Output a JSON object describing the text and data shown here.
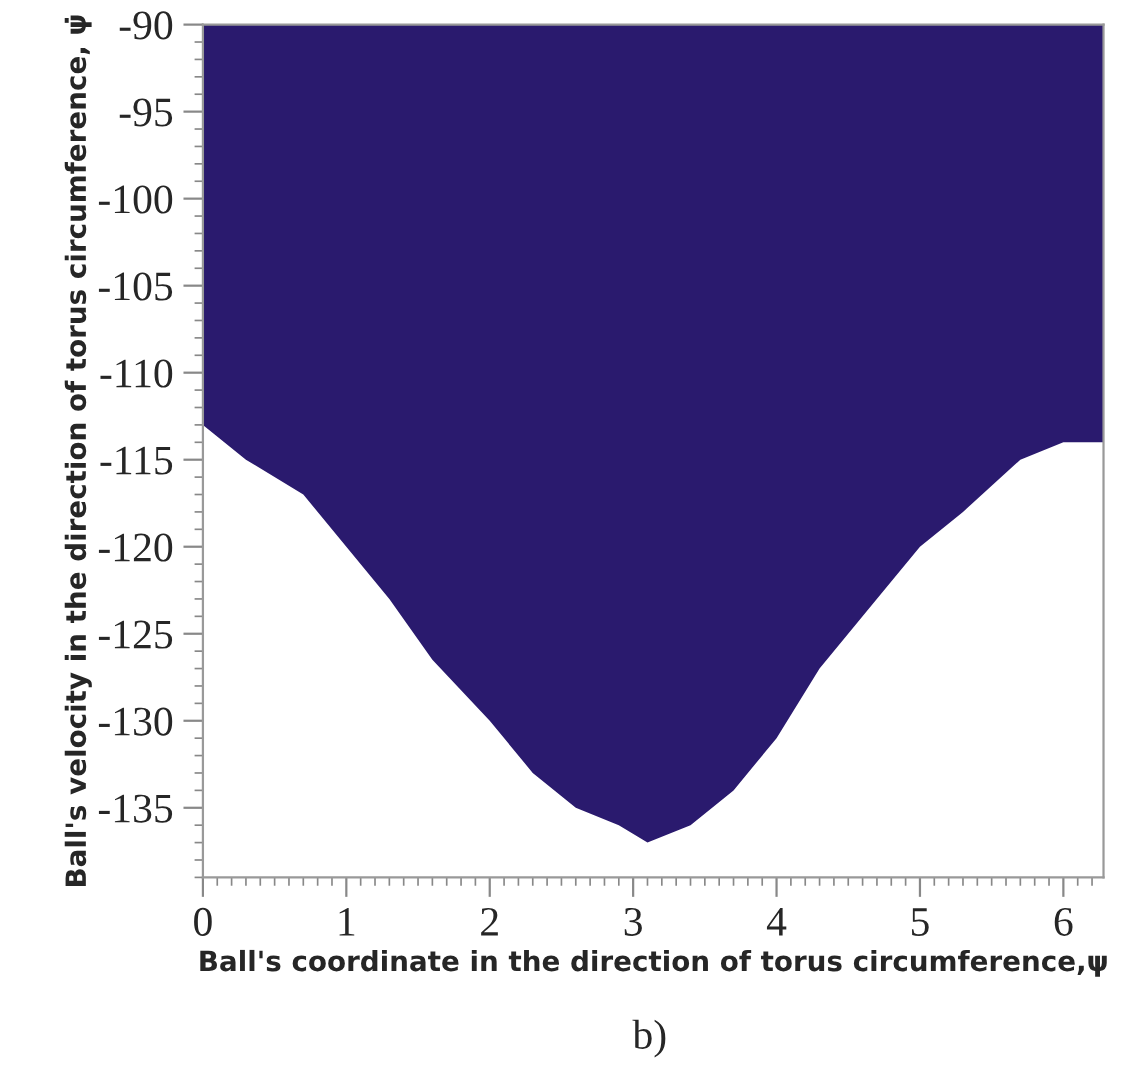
{
  "chart_data": {
    "type": "area",
    "xlabel": "Ball's coordinate in the direction of torus circumference,ψ",
    "ylabel": "Ball's velocity in the direction of torus circumference, ψ̇",
    "annotations": [
      "b)"
    ],
    "x": [
      0,
      0.3,
      0.7,
      1.0,
      1.3,
      1.6,
      2.0,
      2.3,
      2.6,
      2.9,
      3.1,
      3.4,
      3.7,
      4.0,
      4.3,
      4.6,
      5.0,
      5.3,
      5.7,
      6.0,
      6.28
    ],
    "series": [
      {
        "color": "#2a1a6e",
        "values": [
          -113,
          -115,
          -117,
          -120,
          -123,
          -126.5,
          -130,
          -133,
          -135,
          -136,
          -137,
          -136,
          -134,
          -131,
          -127,
          -124,
          -120,
          -118,
          -115,
          -114,
          -114
        ]
      }
    ],
    "xlim": [
      0,
      6.28
    ],
    "xticks": [
      0,
      1,
      2,
      3,
      4,
      5,
      6
    ],
    "ylim": [
      -139,
      -90
    ],
    "yticks": [
      -90,
      -95,
      -100,
      -105,
      -110,
      -115,
      -120,
      -125,
      -130,
      -135
    ],
    "grid": false,
    "legend": false
  }
}
